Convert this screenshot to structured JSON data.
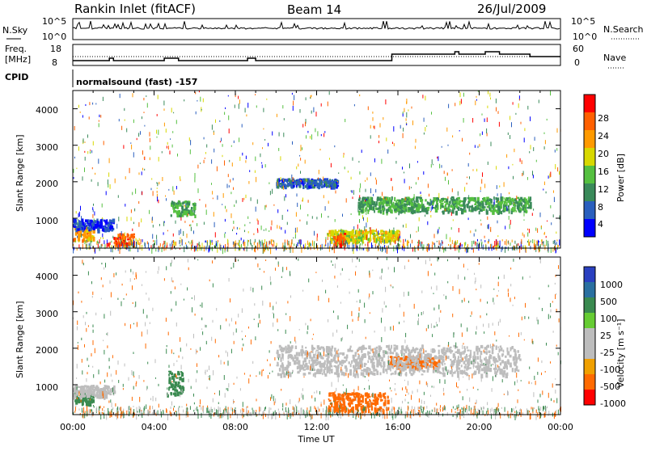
{
  "header": {
    "station": "Rankin Inlet (fitACF)",
    "beam": "Beam 14",
    "date": "26/Jul/2009"
  },
  "sky_panel": {
    "left_label": "N.Sky",
    "right_label": "N.Search",
    "y_ticks_left": [
      "10^5",
      "10^0"
    ],
    "y_ticks_right": [
      "10^5",
      "10^0"
    ]
  },
  "freq_panel": {
    "left_label_1": "Freq.",
    "left_label_2": "[MHz]",
    "right_label": "Nave",
    "y_ticks_left": [
      "18",
      "8"
    ],
    "y_ticks_right": [
      "60",
      "0"
    ]
  },
  "cpid": {
    "label": "CPID",
    "value": "normalsound (fast) -157"
  },
  "x_axis": {
    "label": "Time UT",
    "ticks": [
      "00:00",
      "04:00",
      "08:00",
      "12:00",
      "16:00",
      "20:00",
      "00:00"
    ]
  },
  "power_panel": {
    "ylabel": "Slant Range [km]",
    "y_ticks": [
      "4000",
      "3000",
      "2000",
      "1000"
    ],
    "colorbar_label": "Power [dB]",
    "colorbar_ticks": [
      "28",
      "24",
      "20",
      "16",
      "12",
      "8",
      "4"
    ],
    "colors": [
      "#0000ff",
      "#2a5fbe",
      "#3a8a5a",
      "#55c040",
      "#d8d800",
      "#ff9a00",
      "#ff6000",
      "#ff0000"
    ]
  },
  "velocity_panel": {
    "ylabel": "Slant Range [km]",
    "y_ticks": [
      "4000",
      "3000",
      "2000",
      "1000"
    ],
    "colorbar_label": "Velocity [m s⁻¹]",
    "colorbar_ticks": [
      "1000",
      "500",
      "100",
      "25",
      "-25",
      "-100",
      "-500",
      "-1000"
    ],
    "colors": [
      "#2a40c0",
      "#2a70a0",
      "#3a8a50",
      "#66cc33",
      "#bdbdbd",
      "#bdbdbd",
      "#f0a000",
      "#ff6a00",
      "#ff0000"
    ]
  },
  "chart_data": {
    "type": "heatmap",
    "time_range_hours": [
      0,
      24
    ],
    "range_km": [
      180,
      4500
    ],
    "power_regions_db": [
      {
        "t": [
          0.0,
          1.0
        ],
        "r": [
          400,
          800
        ],
        "value": 24
      },
      {
        "t": [
          0.0,
          2.0
        ],
        "r": [
          700,
          1000
        ],
        "value": 6
      },
      {
        "t": [
          2.0,
          3.0
        ],
        "r": [
          300,
          600
        ],
        "value": 28
      },
      {
        "t": [
          4.8,
          6.0
        ],
        "r": [
          1100,
          1500
        ],
        "value": 14
      },
      {
        "t": [
          10.0,
          13.0
        ],
        "r": [
          1900,
          2100
        ],
        "value": 8
      },
      {
        "t": [
          12.5,
          16.0
        ],
        "r": [
          400,
          700
        ],
        "value": 20
      },
      {
        "t": [
          12.8,
          13.4
        ],
        "r": [
          300,
          600
        ],
        "value": 28
      },
      {
        "t": [
          14.0,
          22.5
        ],
        "r": [
          1200,
          1600
        ],
        "value": 14
      }
    ],
    "velocity_regions_ms": [
      {
        "t": [
          0.0,
          1.0
        ],
        "r": [
          500,
          800
        ],
        "value": 100
      },
      {
        "t": [
          0.0,
          2.0
        ],
        "r": [
          700,
          1000
        ],
        "value": 0
      },
      {
        "t": [
          4.6,
          5.4
        ],
        "r": [
          700,
          1400
        ],
        "value": 100
      },
      {
        "t": [
          12.5,
          15.5
        ],
        "r": [
          300,
          800
        ],
        "value": -300
      },
      {
        "t": [
          15.5,
          18.0
        ],
        "r": [
          1500,
          1800
        ],
        "value": -150
      },
      {
        "t": [
          10.0,
          22.0
        ],
        "r": [
          1300,
          2100
        ],
        "value": 0
      }
    ]
  }
}
